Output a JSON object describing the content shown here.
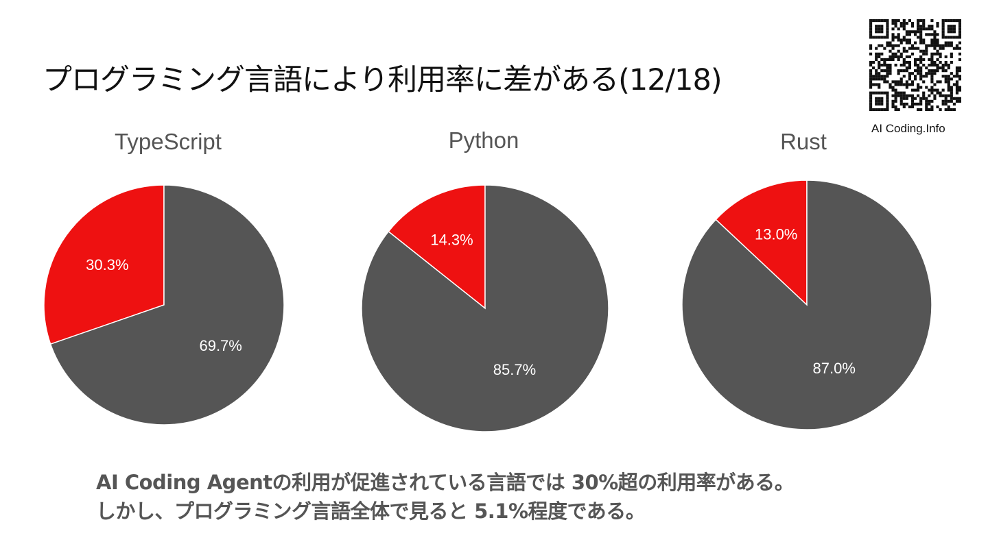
{
  "slide": {
    "title": "プログラミング言語により利用率に差がある(12/18)",
    "qr_caption": "AI Coding.Info",
    "summary_line1": "AI Coding Agentの利用が促進されている言語では  30%超の利用率がある。",
    "summary_line2": "しかし、プログラミング言語全体で見ると  5.1%程度である。"
  },
  "colors": {
    "used": "#ee1111",
    "not_used": "#555555"
  },
  "chart_data": [
    {
      "type": "pie",
      "title": "TypeScript",
      "values": [
        30.3,
        69.7
      ],
      "labels": [
        "30.3%",
        "69.7%"
      ]
    },
    {
      "type": "pie",
      "title": "Python",
      "values": [
        14.3,
        85.7
      ],
      "labels": [
        "14.3%",
        "85.7%"
      ]
    },
    {
      "type": "pie",
      "title": "Rust",
      "values": [
        13.0,
        87.0
      ],
      "labels": [
        "13.0%",
        "87.0%"
      ]
    }
  ]
}
